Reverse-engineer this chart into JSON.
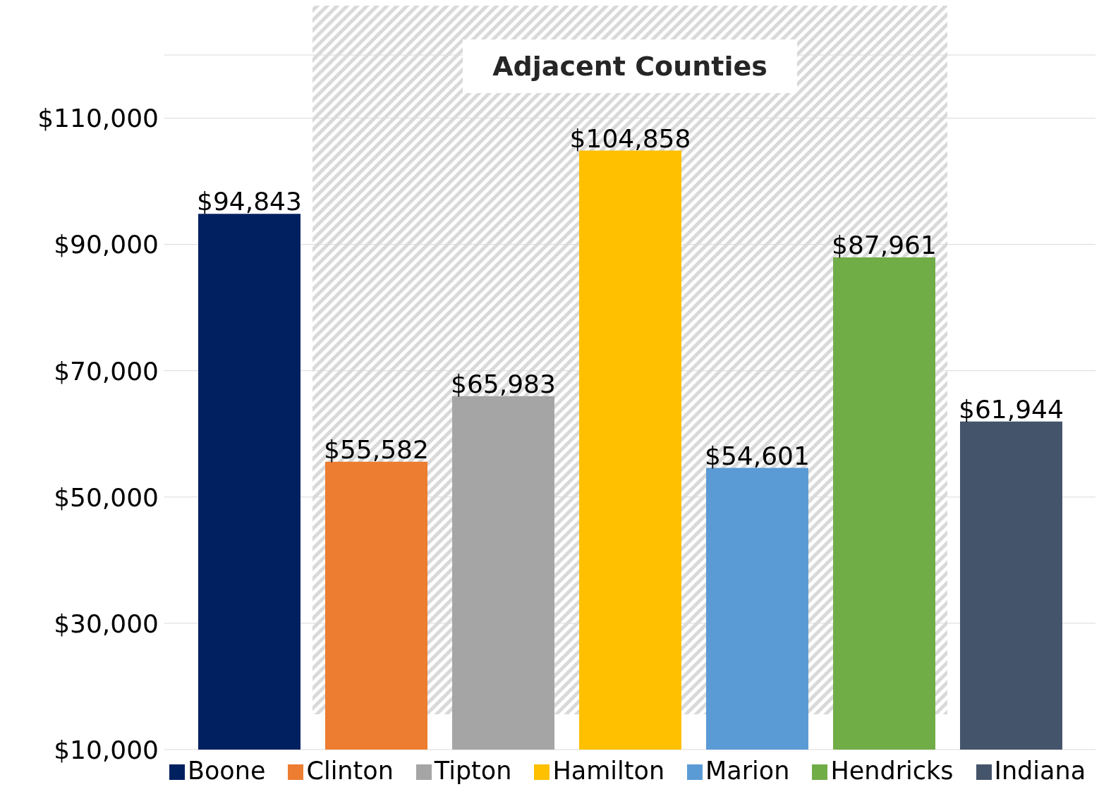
{
  "chart_data": {
    "type": "bar",
    "categories": [
      null
    ],
    "series": [
      {
        "name": "Boone",
        "color": "#002060",
        "values": [
          94843
        ],
        "value_labels": [
          "$94,843"
        ]
      },
      {
        "name": "Clinton",
        "color": "#ed7d31",
        "values": [
          55582
        ],
        "value_labels": [
          "$55,582"
        ]
      },
      {
        "name": "Tipton",
        "color": "#a5a5a5",
        "values": [
          65983
        ],
        "value_labels": [
          "$65,983"
        ]
      },
      {
        "name": "Hamilton",
        "color": "#ffc000",
        "values": [
          104858
        ],
        "value_labels": [
          "$104,858"
        ]
      },
      {
        "name": "Marion",
        "color": "#5b9bd5",
        "values": [
          54601
        ],
        "value_labels": [
          "$54,601"
        ]
      },
      {
        "name": "Hendricks",
        "color": "#70ad47",
        "values": [
          87961
        ],
        "value_labels": [
          "$87,961"
        ]
      },
      {
        "name": "Indiana",
        "color": "#44546a",
        "values": [
          61944
        ],
        "value_labels": [
          "$61,944"
        ]
      }
    ],
    "ylim": [
      10000,
      120000
    ],
    "yticks": [
      {
        "value": 10000,
        "label": "$10,000"
      },
      {
        "value": 30000,
        "label": "$30,000"
      },
      {
        "value": 50000,
        "label": "$50,000"
      },
      {
        "value": 70000,
        "label": "$70,000"
      },
      {
        "value": 90000,
        "label": "$90,000"
      },
      {
        "value": 110000,
        "label": "$110,000"
      }
    ],
    "annotations": [
      "Adjacent Counties"
    ],
    "grid": "y",
    "legend": "bottom",
    "tick_labels": "y"
  }
}
